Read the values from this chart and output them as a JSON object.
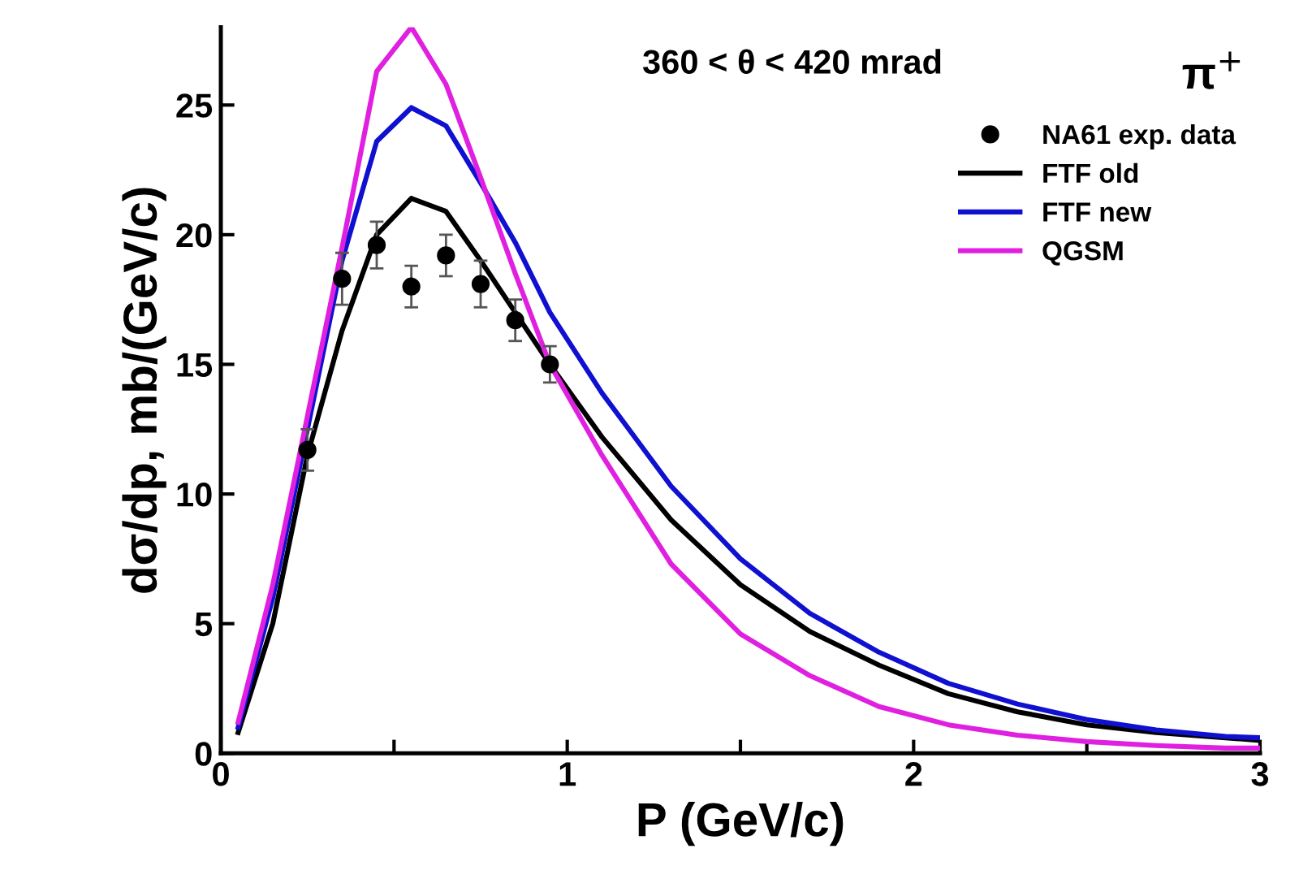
{
  "chart_data": {
    "type": "line",
    "xlabel": "P (GeV/c)",
    "ylabel": "dσ/dp, mb/(GeV/c)",
    "annotations": [
      "360 < θ < 420 mrad",
      "π$^{+}$"
    ],
    "xlim": [
      0,
      3
    ],
    "ylim": [
      0,
      28
    ],
    "xticks": [
      0,
      {
        "value": 0.5,
        "label": null
      },
      1,
      {
        "value": 1.5,
        "label": null
      },
      2,
      {
        "value": 2.5,
        "label": null
      },
      3
    ],
    "yticks": [
      0,
      5,
      10,
      15,
      20,
      25
    ],
    "grid": false,
    "legend": "top right",
    "series": [
      {
        "name": "NA61 exp. data",
        "type": "scatter",
        "marker": "circle",
        "color": "#000000",
        "x": [
          0.25,
          0.35,
          0.45,
          0.55,
          0.65,
          0.75,
          0.85,
          0.95
        ],
        "values": [
          11.7,
          18.3,
          19.6,
          18.0,
          19.2,
          18.1,
          16.7,
          15.0
        ],
        "errors": [
          0.8,
          1.0,
          0.9,
          0.8,
          0.8,
          0.9,
          0.8,
          0.7
        ]
      },
      {
        "name": "FTF old",
        "color": "#000000",
        "x": [
          0.05,
          0.15,
          0.25,
          0.35,
          0.45,
          0.55,
          0.65,
          0.75,
          0.85,
          0.95,
          1.1,
          1.3,
          1.5,
          1.7,
          1.9,
          2.1,
          2.3,
          2.5,
          2.7,
          2.9,
          3.0
        ],
        "values": [
          0.8,
          5,
          11.5,
          16.3,
          20.0,
          21.4,
          20.9,
          19.0,
          17.0,
          15.0,
          12.2,
          9.0,
          6.5,
          4.7,
          3.4,
          2.3,
          1.6,
          1.1,
          0.8,
          0.6,
          0.5
        ]
      },
      {
        "name": "FTF new",
        "color": "#1010d0",
        "x": [
          0.05,
          0.15,
          0.25,
          0.35,
          0.45,
          0.55,
          0.65,
          0.75,
          0.85,
          0.95,
          1.1,
          1.3,
          1.5,
          1.7,
          1.9,
          2.1,
          2.3,
          2.5,
          2.7,
          2.9,
          3.0
        ],
        "values": [
          1.0,
          6,
          12.5,
          19.0,
          23.6,
          24.9,
          24.2,
          22.0,
          19.7,
          17.0,
          13.9,
          10.3,
          7.5,
          5.4,
          3.9,
          2.7,
          1.9,
          1.3,
          0.9,
          0.65,
          0.6
        ]
      },
      {
        "name": "QGSM",
        "color": "#e020e0",
        "x": [
          0.05,
          0.15,
          0.25,
          0.35,
          0.45,
          0.55,
          0.65,
          0.75,
          0.85,
          0.95,
          1.1,
          1.3,
          1.5,
          1.7,
          1.9,
          2.1,
          2.3,
          2.5,
          2.7,
          2.9,
          3.0
        ],
        "values": [
          1.2,
          6.5,
          13,
          19.5,
          26.3,
          28.0,
          25.8,
          22.2,
          18.5,
          15.0,
          11.5,
          7.3,
          4.6,
          3.0,
          1.8,
          1.1,
          0.7,
          0.45,
          0.3,
          0.2,
          0.2
        ]
      }
    ]
  }
}
